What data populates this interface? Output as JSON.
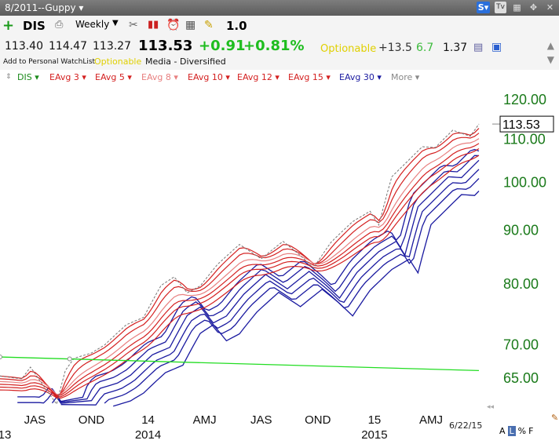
{
  "window": {
    "title": "8/2011--Guppy ▾"
  },
  "toolbar": {
    "symbol": "DIS",
    "period": "Weekly",
    "value": "1.0"
  },
  "quote": {
    "open": "113.40",
    "high": "114.47",
    "low": "113.27",
    "last": "113.53",
    "change": "+0.91",
    "change_pct": "+0.81%",
    "optionable": "Optionable",
    "num1": "+13.5",
    "num2": "6.7",
    "num3": "1.37",
    "add_watchlist": "Add to Personal WatchList",
    "optionable2": "Optionable",
    "industry": "Media - Diversified"
  },
  "legend": {
    "items": [
      {
        "label": "DIS",
        "color": "#1a8a1a"
      },
      {
        "label": "EAvg 3",
        "color": "#d42020"
      },
      {
        "label": "EAvg 5",
        "color": "#d42020"
      },
      {
        "label": "EAvg 8",
        "color": "#e88080"
      },
      {
        "label": "EAvg 10",
        "color": "#d42020"
      },
      {
        "label": "EAvg 12",
        "color": "#d42020"
      },
      {
        "label": "EAvg 15",
        "color": "#d42020"
      },
      {
        "label": "EAvg 30",
        "color": "#1a1aa0"
      },
      {
        "label": "More",
        "color": "#888888"
      }
    ]
  },
  "footer": {
    "date": "6/22/15",
    "controls": [
      "A",
      "L",
      "%",
      "F"
    ]
  },
  "chart_data": {
    "type": "line",
    "yscale": "log",
    "ylim": [
      61,
      124
    ],
    "yticks": [
      "120.00",
      "110.00",
      "100.00",
      "90.00",
      "80.00",
      "70.00",
      "65.00"
    ],
    "last_price_label": "113.53",
    "x_ticks": [
      {
        "label": "JAS",
        "week": 8
      },
      {
        "label": "OND",
        "week": 21
      },
      {
        "label": "14",
        "week": 34
      },
      {
        "label": "AMJ",
        "week": 47
      },
      {
        "label": "JAS",
        "week": 60
      },
      {
        "label": "OND",
        "week": 73
      },
      {
        "label": "15",
        "week": 86
      },
      {
        "label": "AMJ",
        "week": 99
      }
    ],
    "year_labels": [
      {
        "label": "13",
        "week": -2
      },
      {
        "label": "2014",
        "week": 34
      },
      {
        "label": "2015",
        "week": 86
      }
    ],
    "x_range": [
      0,
      110
    ],
    "price": {
      "color": "#777777",
      "weeks": [
        0,
        5,
        7,
        10,
        13,
        15,
        17,
        21,
        24,
        29,
        33,
        37,
        40,
        43,
        46,
        50,
        55,
        60,
        65,
        69,
        72,
        76,
        81,
        85,
        87,
        90,
        93,
        97,
        100,
        104,
        108,
        110
      ],
      "values": [
        65.2,
        64.8,
        66.5,
        63.8,
        61.3,
        66.0,
        67.8,
        68.6,
        69.8,
        73.0,
        74.2,
        79.6,
        81.1,
        78.3,
        79.5,
        83.4,
        87.1,
        84.4,
        87.7,
        85.0,
        82.7,
        87.5,
        91.6,
        93.7,
        90.9,
        101.1,
        104.0,
        108.0,
        107.8,
        112.0,
        110.5,
        113.53
      ]
    },
    "eavg_red_offsets": [
      0,
      -0.006,
      -0.012,
      -0.018,
      -0.024,
      -0.03
    ],
    "eavg_blue_offsets": [
      -0.04,
      -0.052,
      -0.064,
      -0.076,
      -0.088,
      -0.1
    ],
    "blue_start": {
      "week": 4,
      "value": 61.0
    },
    "trendline": {
      "color": "#22dd22",
      "start": {
        "week": 0,
        "value": 68.0
      },
      "end": {
        "week": 110,
        "value": 66.0
      },
      "points_weeks": [
        0,
        16
      ]
    }
  }
}
